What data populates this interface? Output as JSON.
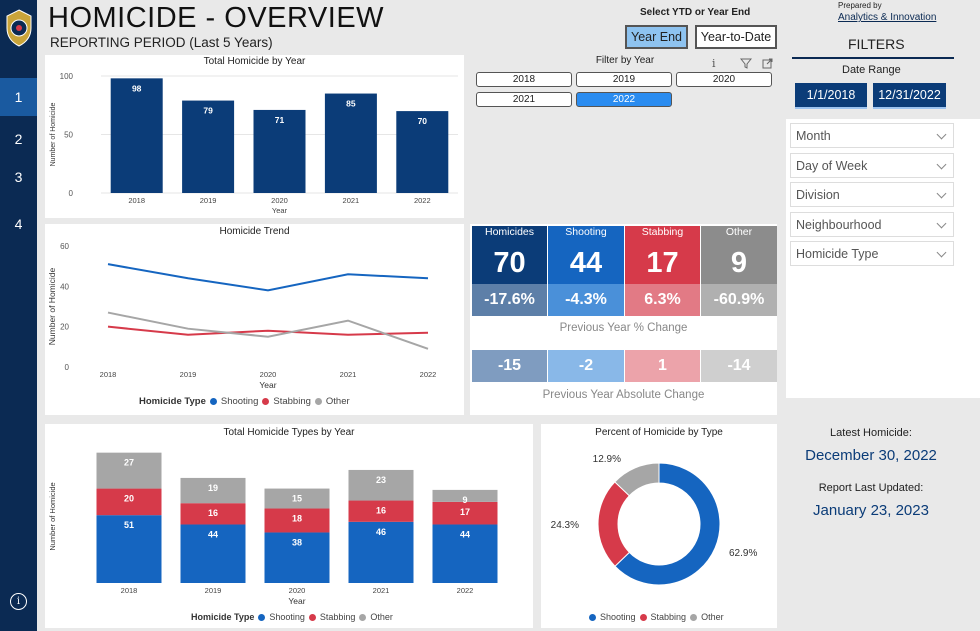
{
  "colors": {
    "shooting": "#1565c0",
    "stabbing": "#d63a4a",
    "other": "#a6a6a6",
    "navy": "#0b3c78",
    "sidebar": "#0b2a53",
    "accent": "#2a8cf0"
  },
  "header": {
    "title": "HOMICIDE - OVERVIEW",
    "subtitle": "REPORTING PERIOD (Last 5 Years)"
  },
  "nav": {
    "items": [
      "1",
      "2",
      "3",
      "4"
    ],
    "active": "1",
    "info_icon": "info-icon",
    "logo_icon": "police-crest-icon"
  },
  "ytd": {
    "label": "Select YTD or Year End",
    "options": [
      "Year End",
      "Year-to-Date"
    ],
    "selected": "Year End"
  },
  "prepared": {
    "by_label": "Prepared by",
    "by_link": "Analytics & Innovation"
  },
  "filters": {
    "heading": "FILTERS",
    "date_range_label": "Date Range",
    "date_start": "1/1/2018",
    "date_end": "12/31/2022",
    "slicers": [
      "Month",
      "Day of Week",
      "Division",
      "Neighbourhood",
      "Homicide Type"
    ]
  },
  "year_filter": {
    "title": "Filter by Year",
    "years": [
      "2018",
      "2019",
      "2020",
      "2021",
      "2022"
    ],
    "selected": "2022",
    "icons": [
      "info-icon",
      "filter-icon",
      "expand-icon"
    ]
  },
  "kpis": {
    "headers": [
      "Homicides",
      "Shooting",
      "Stabbing",
      "Other"
    ],
    "values": [
      "70",
      "44",
      "17",
      "9"
    ],
    "pct_change": [
      "-17.6%",
      "-4.3%",
      "6.3%",
      "-60.9%"
    ],
    "pct_caption": "Previous Year % Change",
    "abs_change": [
      "-15",
      "-2",
      "1",
      "-14"
    ],
    "abs_caption": "Previous Year Absolute Change"
  },
  "latest": {
    "label": "Latest Homicide:",
    "value": "December 30, 2022"
  },
  "updated": {
    "label": "Report Last Updated:",
    "value": "January 23, 2023"
  },
  "chart_data": [
    {
      "id": "total_by_year",
      "type": "bar",
      "title": "Total Homicide by Year",
      "xlabel": "Year",
      "ylabel": "Number of Homicide",
      "categories": [
        "2018",
        "2019",
        "2020",
        "2021",
        "2022"
      ],
      "values": [
        98,
        79,
        71,
        85,
        70
      ],
      "ylim": [
        0,
        100
      ],
      "yticks": [
        0,
        50,
        100
      ],
      "grid": true
    },
    {
      "id": "trend",
      "type": "line",
      "title": "Homicide Trend",
      "xlabel": "Year",
      "ylabel": "Number of Homicide",
      "legend_title": "Homicide Type",
      "legend_placement": "bottom",
      "categories": [
        "2018",
        "2019",
        "2020",
        "2021",
        "2022"
      ],
      "ylim": [
        0,
        60
      ],
      "yticks": [
        0,
        20,
        40,
        60
      ],
      "series": [
        {
          "name": "Shooting",
          "values": [
            51,
            44,
            38,
            46,
            44
          ]
        },
        {
          "name": "Stabbing",
          "values": [
            20,
            16,
            18,
            16,
            17
          ]
        },
        {
          "name": "Other",
          "values": [
            27,
            19,
            15,
            23,
            9
          ]
        }
      ]
    },
    {
      "id": "types_by_year",
      "type": "bar",
      "stacked": true,
      "title": "Total Homicide Types by Year",
      "xlabel": "Year",
      "ylabel": "Number of Homicide",
      "legend_title": "Homicide Type",
      "legend_placement": "bottom",
      "categories": [
        "2018",
        "2019",
        "2020",
        "2021",
        "2022"
      ],
      "ylim": [
        0,
        100
      ],
      "series": [
        {
          "name": "Shooting",
          "values": [
            51,
            44,
            38,
            46,
            44
          ]
        },
        {
          "name": "Stabbing",
          "values": [
            20,
            16,
            18,
            16,
            17
          ]
        },
        {
          "name": "Other",
          "values": [
            27,
            19,
            15,
            23,
            9
          ]
        }
      ]
    },
    {
      "id": "percent_by_type",
      "type": "pie",
      "donut": true,
      "title": "Percent of Homicide by Type",
      "legend_placement": "bottom",
      "categories": [
        "Shooting",
        "Stabbing",
        "Other"
      ],
      "values": [
        62.9,
        24.3,
        12.9
      ],
      "labels": [
        "62.9%",
        "24.3%",
        "12.9%"
      ]
    }
  ]
}
